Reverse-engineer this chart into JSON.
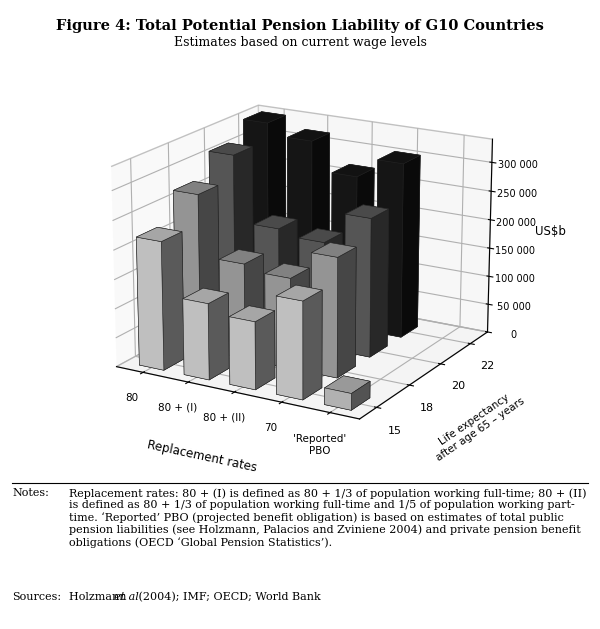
{
  "title": "Figure 4: Total Potential Pension Liability of G10 Countries",
  "subtitle": "Estimates based on current wage levels",
  "ylabel": "US$b",
  "xlabel": "Replacement rates",
  "zlabel": "Life expectancy\nafter age 65 – years",
  "x_labels": [
    "80",
    "80 + (I)",
    "80 + (II)",
    "70",
    "'Reported'\nPBO"
  ],
  "y_labels": [
    "15",
    "18",
    "20",
    "22"
  ],
  "yticks": [
    0,
    50000,
    100000,
    150000,
    200000,
    250000,
    300000
  ],
  "ytick_labels": [
    "0",
    "50 000",
    "100 000",
    "150 000",
    "200 000",
    "250 000",
    "300 000"
  ],
  "bar_data": [
    [
      220000,
      270000,
      310000,
      340000
    ],
    [
      130000,
      165000,
      195000,
      320000
    ],
    [
      115000,
      155000,
      185000,
      270000
    ],
    [
      165000,
      205000,
      240000,
      305000
    ],
    [
      28000,
      0,
      0,
      0
    ]
  ],
  "colors": [
    "#d8d8d8",
    "#a8a8a8",
    "#606060",
    "#181818"
  ],
  "pbo_color": "#c8c8c8",
  "bar_width": 0.55,
  "bar_depth": 0.55,
  "elev": 18,
  "azim": -60,
  "notes_label": "Notes:",
  "notes_body": "Replacement rates: 80 + (I) is defined as 80 + 1/3 of population working full-time; 80 + (II)\nis defined as 80 + 1/3 of population working full-time and 1/5 of population working part-\ntime. ‘Reported’ PBO (projected benefit obligation) is based on estimates of total public\npension liabilities (see Holzmann, Palacios and Zviniene 2004) and private pension benefit\nobligations (OECD ‘Global Pension Statistics’).",
  "sources_label": "Sources:",
  "sources_body": "Holzmann et al (2004); IMF; OECD; World Bank"
}
